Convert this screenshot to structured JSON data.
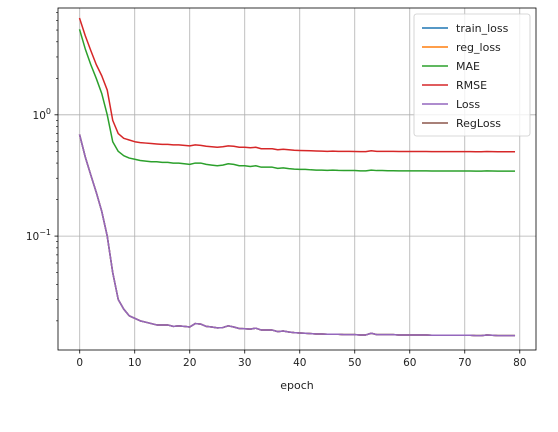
{
  "chart_data": {
    "type": "line",
    "xlabel": "epoch",
    "ylabel": "",
    "yscale": "log",
    "xlim": [
      -3.95,
      82.95
    ],
    "ylim": [
      0.0115,
      7.6
    ],
    "x_ticks": [
      0,
      10,
      20,
      30,
      40,
      50,
      60,
      70,
      80
    ],
    "y_ticks": [
      {
        "value": 0.1,
        "base": "10",
        "exp": "−1"
      },
      {
        "value": 1,
        "base": "10",
        "exp": "0"
      }
    ],
    "grid": true,
    "legend": {
      "placement": "upper-right"
    },
    "x": [
      0,
      1,
      2,
      3,
      4,
      5,
      6,
      7,
      8,
      9,
      10,
      11,
      12,
      13,
      14,
      15,
      16,
      17,
      18,
      19,
      20,
      21,
      22,
      23,
      24,
      25,
      26,
      27,
      28,
      29,
      30,
      31,
      32,
      33,
      34,
      35,
      36,
      37,
      38,
      39,
      40,
      41,
      42,
      43,
      44,
      45,
      46,
      47,
      48,
      49,
      50,
      51,
      52,
      53,
      54,
      55,
      56,
      57,
      58,
      59,
      60,
      61,
      62,
      63,
      64,
      65,
      66,
      67,
      68,
      69,
      70,
      71,
      72,
      73,
      74,
      75,
      76,
      77,
      78,
      79
    ],
    "series": [
      {
        "name": "train_loss",
        "color": "#1f77b4",
        "values": [
          0.68,
          0.45,
          0.32,
          0.23,
          0.16,
          0.1,
          0.05,
          0.03,
          0.025,
          0.022,
          0.021,
          0.02,
          0.0195,
          0.019,
          0.0185,
          0.0185,
          0.0185,
          0.018,
          0.0182,
          0.018,
          0.0178,
          0.019,
          0.0188,
          0.018,
          0.0178,
          0.0175,
          0.0176,
          0.0182,
          0.0178,
          0.0173,
          0.0172,
          0.0171,
          0.0174,
          0.0168,
          0.0168,
          0.0168,
          0.0163,
          0.0165,
          0.0162,
          0.016,
          0.0159,
          0.0158,
          0.0157,
          0.0156,
          0.0156,
          0.0155,
          0.0155,
          0.0155,
          0.0154,
          0.0154,
          0.0154,
          0.0153,
          0.0153,
          0.0158,
          0.0154,
          0.0154,
          0.0154,
          0.0154,
          0.0153,
          0.0153,
          0.0153,
          0.0153,
          0.0153,
          0.0153,
          0.0152,
          0.0152,
          0.0152,
          0.0152,
          0.0152,
          0.0152,
          0.0152,
          0.0152,
          0.0151,
          0.0151,
          0.0153,
          0.0152,
          0.0151,
          0.0151,
          0.0151,
          0.0151
        ]
      },
      {
        "name": "reg_loss",
        "color": "#ff7f0e",
        "values": [
          0.68,
          0.45,
          0.32,
          0.23,
          0.16,
          0.1,
          0.05,
          0.03,
          0.025,
          0.022,
          0.021,
          0.02,
          0.0195,
          0.019,
          0.0185,
          0.0185,
          0.0185,
          0.018,
          0.0182,
          0.018,
          0.0178,
          0.019,
          0.0188,
          0.018,
          0.0178,
          0.0175,
          0.0176,
          0.0182,
          0.0178,
          0.0173,
          0.0172,
          0.0171,
          0.0174,
          0.0168,
          0.0168,
          0.0168,
          0.0163,
          0.0165,
          0.0162,
          0.016,
          0.0159,
          0.0158,
          0.0157,
          0.0156,
          0.0156,
          0.0155,
          0.0155,
          0.0155,
          0.0154,
          0.0154,
          0.0154,
          0.0153,
          0.0153,
          0.0158,
          0.0154,
          0.0154,
          0.0154,
          0.0154,
          0.0153,
          0.0153,
          0.0153,
          0.0153,
          0.0153,
          0.0153,
          0.0152,
          0.0152,
          0.0152,
          0.0152,
          0.0152,
          0.0152,
          0.0152,
          0.0152,
          0.0151,
          0.0151,
          0.0153,
          0.0152,
          0.0151,
          0.0151,
          0.0151,
          0.0151
        ]
      },
      {
        "name": "MAE",
        "color": "#2ca02c",
        "values": [
          5.0,
          3.5,
          2.6,
          2.0,
          1.5,
          1.0,
          0.6,
          0.5,
          0.46,
          0.44,
          0.43,
          0.42,
          0.415,
          0.41,
          0.41,
          0.405,
          0.405,
          0.4,
          0.4,
          0.395,
          0.39,
          0.4,
          0.4,
          0.39,
          0.385,
          0.38,
          0.385,
          0.395,
          0.39,
          0.38,
          0.38,
          0.375,
          0.38,
          0.37,
          0.37,
          0.37,
          0.362,
          0.365,
          0.36,
          0.357,
          0.355,
          0.355,
          0.352,
          0.35,
          0.35,
          0.348,
          0.35,
          0.348,
          0.347,
          0.347,
          0.347,
          0.345,
          0.345,
          0.35,
          0.347,
          0.347,
          0.346,
          0.346,
          0.345,
          0.345,
          0.345,
          0.345,
          0.345,
          0.345,
          0.344,
          0.344,
          0.344,
          0.344,
          0.344,
          0.344,
          0.344,
          0.344,
          0.343,
          0.343,
          0.345,
          0.344,
          0.343,
          0.343,
          0.343,
          0.343
        ]
      },
      {
        "name": "RMSE",
        "color": "#d62728",
        "values": [
          6.2,
          4.5,
          3.4,
          2.6,
          2.1,
          1.6,
          0.9,
          0.7,
          0.64,
          0.62,
          0.6,
          0.59,
          0.585,
          0.58,
          0.575,
          0.57,
          0.57,
          0.565,
          0.565,
          0.56,
          0.555,
          0.565,
          0.56,
          0.55,
          0.545,
          0.54,
          0.545,
          0.555,
          0.55,
          0.54,
          0.54,
          0.535,
          0.54,
          0.525,
          0.525,
          0.525,
          0.515,
          0.52,
          0.515,
          0.51,
          0.508,
          0.507,
          0.505,
          0.503,
          0.502,
          0.5,
          0.502,
          0.5,
          0.499,
          0.499,
          0.498,
          0.497,
          0.497,
          0.505,
          0.5,
          0.5,
          0.499,
          0.499,
          0.498,
          0.498,
          0.498,
          0.498,
          0.498,
          0.498,
          0.497,
          0.497,
          0.497,
          0.497,
          0.497,
          0.497,
          0.497,
          0.497,
          0.496,
          0.496,
          0.498,
          0.497,
          0.496,
          0.496,
          0.496,
          0.496
        ]
      },
      {
        "name": "Loss",
        "color": "#9467bd",
        "values": [
          0.68,
          0.45,
          0.32,
          0.23,
          0.16,
          0.1,
          0.05,
          0.03,
          0.025,
          0.022,
          0.021,
          0.02,
          0.0195,
          0.019,
          0.0185,
          0.0185,
          0.0185,
          0.018,
          0.0182,
          0.018,
          0.0178,
          0.019,
          0.0188,
          0.018,
          0.0178,
          0.0175,
          0.0176,
          0.0182,
          0.0178,
          0.0173,
          0.0172,
          0.0171,
          0.0174,
          0.0168,
          0.0168,
          0.0168,
          0.0163,
          0.0165,
          0.0162,
          0.016,
          0.0159,
          0.0158,
          0.0157,
          0.0156,
          0.0156,
          0.0155,
          0.0155,
          0.0155,
          0.0154,
          0.0154,
          0.0154,
          0.0153,
          0.0153,
          0.0158,
          0.0154,
          0.0154,
          0.0154,
          0.0154,
          0.0153,
          0.0153,
          0.0153,
          0.0153,
          0.0153,
          0.0153,
          0.0152,
          0.0152,
          0.0152,
          0.0152,
          0.0152,
          0.0152,
          0.0152,
          0.0152,
          0.0151,
          0.0151,
          0.0153,
          0.0152,
          0.0151,
          0.0151,
          0.0151,
          0.0151
        ]
      },
      {
        "name": "RegLoss",
        "color": "#8c564b",
        "values": [
          0.68,
          0.45,
          0.32,
          0.23,
          0.16,
          0.1,
          0.05,
          0.03,
          0.025,
          0.022,
          0.021,
          0.02,
          0.0195,
          0.019,
          0.0185,
          0.0185,
          0.0185,
          0.018,
          0.0182,
          0.018,
          0.0178,
          0.019,
          0.0188,
          0.018,
          0.0178,
          0.0175,
          0.0176,
          0.0182,
          0.0178,
          0.0173,
          0.0172,
          0.0171,
          0.0174,
          0.0168,
          0.0168,
          0.0168,
          0.0163,
          0.0165,
          0.0162,
          0.016,
          0.0159,
          0.0158,
          0.0157,
          0.0156,
          0.0156,
          0.0155,
          0.0155,
          0.0155,
          0.0154,
          0.0154,
          0.0154,
          0.0153,
          0.0153,
          0.0158,
          0.0154,
          0.0154,
          0.0154,
          0.0154,
          0.0153,
          0.0153,
          0.0153,
          0.0153,
          0.0153,
          0.0153,
          0.0152,
          0.0152,
          0.0152,
          0.0152,
          0.0152,
          0.0152,
          0.0152,
          0.0152,
          0.0151,
          0.0151,
          0.0153,
          0.0152,
          0.0151,
          0.0151,
          0.0151,
          0.0151
        ]
      }
    ],
    "draw_order": [
      "train_loss",
      "reg_loss",
      "MAE",
      "RMSE",
      "RegLoss",
      "Loss"
    ]
  }
}
